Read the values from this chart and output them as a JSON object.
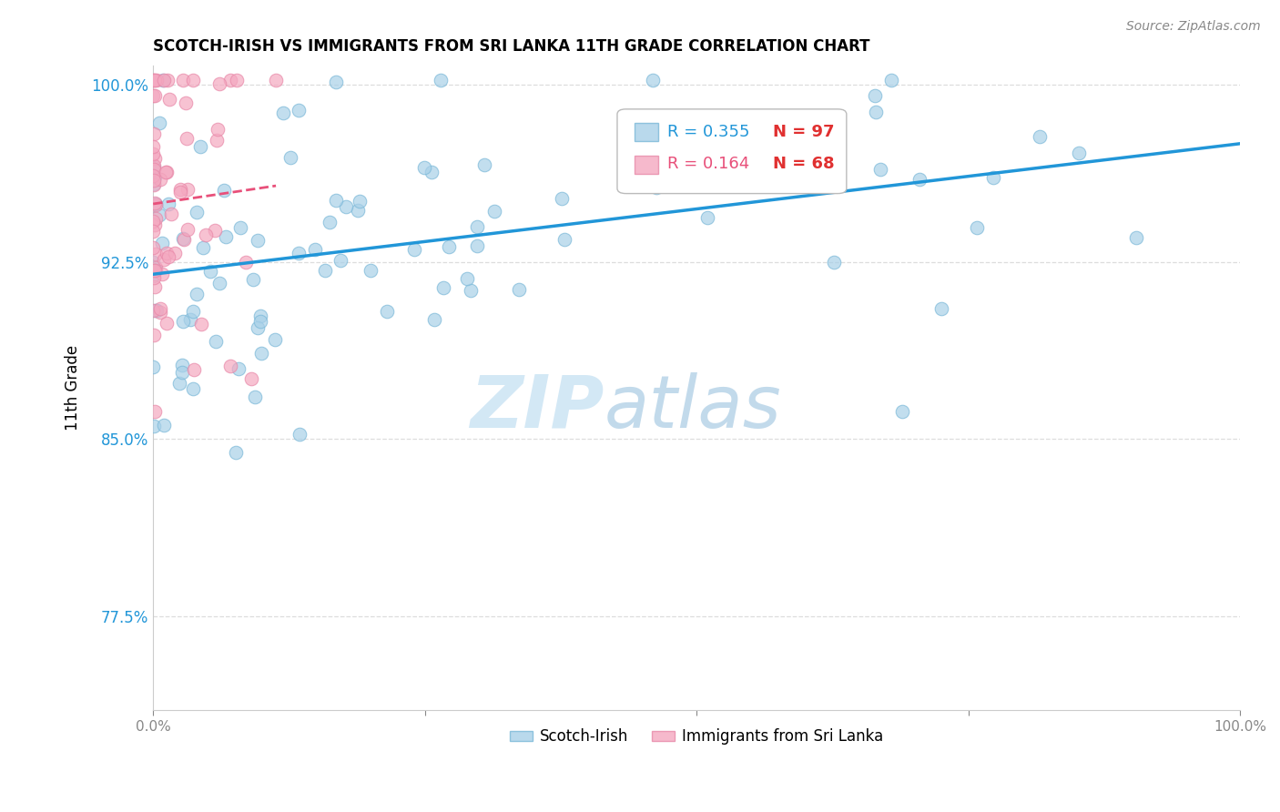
{
  "title": "SCOTCH-IRISH VS IMMIGRANTS FROM SRI LANKA 11TH GRADE CORRELATION CHART",
  "source": "Source: ZipAtlas.com",
  "ylabel": "11th Grade",
  "xlim": [
    0.0,
    1.0
  ],
  "ylim": [
    0.735,
    1.008
  ],
  "yticks": [
    0.775,
    0.85,
    0.925,
    1.0
  ],
  "ytick_labels": [
    "77.5%",
    "85.0%",
    "92.5%",
    "100.0%"
  ],
  "blue_color": "#a8d0e8",
  "blue_edge_color": "#7ab8d8",
  "blue_line_color": "#2196d8",
  "pink_color": "#f4a8c0",
  "pink_edge_color": "#e888a8",
  "pink_line_color": "#e8507a",
  "legend_blue_R": "R = 0.355",
  "legend_blue_N": "N = 97",
  "legend_pink_R": "R = 0.164",
  "legend_pink_N": "N = 68",
  "watermark_ZIP": "ZIP",
  "watermark_atlas": "atlas",
  "blue_R": 0.355,
  "pink_R": 0.164,
  "blue_N": 97,
  "pink_N": 68
}
